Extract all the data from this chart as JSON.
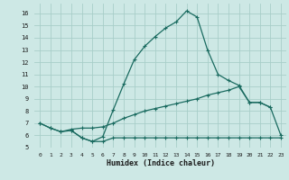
{
  "background_color": "#cde8e5",
  "grid_color": "#a8cec9",
  "line_color": "#1a6b60",
  "xlabel": "Humidex (Indice chaleur)",
  "xlim": [
    -0.5,
    23.5
  ],
  "ylim": [
    5,
    16.8
  ],
  "xticks": [
    0,
    1,
    2,
    3,
    4,
    5,
    6,
    7,
    8,
    9,
    10,
    11,
    12,
    13,
    14,
    15,
    16,
    17,
    18,
    19,
    20,
    21,
    22,
    23
  ],
  "yticks": [
    5,
    6,
    7,
    8,
    9,
    10,
    11,
    12,
    13,
    14,
    15,
    16
  ],
  "curve1_x": [
    0,
    1,
    2,
    3,
    4,
    5,
    6,
    7,
    8,
    9,
    10,
    11,
    12,
    13,
    14,
    15,
    16,
    17,
    18,
    19,
    20,
    21,
    22
  ],
  "curve1_y": [
    7.0,
    6.6,
    6.3,
    6.4,
    5.8,
    5.5,
    5.9,
    8.1,
    10.2,
    12.2,
    13.3,
    14.1,
    14.8,
    15.3,
    16.2,
    15.7,
    13.0,
    11.0,
    10.5,
    10.1,
    8.7,
    8.7,
    8.3
  ],
  "curve2_x": [
    0,
    1,
    2,
    3,
    4,
    5,
    6,
    7,
    8,
    9,
    10,
    11,
    12,
    13,
    14,
    15,
    16,
    17,
    18,
    19,
    20,
    21,
    22,
    23
  ],
  "curve2_y": [
    7.0,
    6.6,
    6.3,
    6.5,
    6.6,
    6.6,
    6.7,
    7.0,
    7.4,
    7.7,
    8.0,
    8.2,
    8.4,
    8.6,
    8.8,
    9.0,
    9.3,
    9.5,
    9.7,
    10.0,
    8.7,
    8.7,
    8.3,
    6.0
  ],
  "curve3_x": [
    3,
    4,
    5,
    6,
    7,
    8,
    9,
    10,
    11,
    12,
    13,
    14,
    15,
    16,
    17,
    18,
    19,
    20,
    21,
    22,
    23
  ],
  "curve3_y": [
    6.4,
    5.8,
    5.5,
    5.5,
    5.8,
    5.8,
    5.8,
    5.8,
    5.8,
    5.8,
    5.8,
    5.8,
    5.8,
    5.8,
    5.8,
    5.8,
    5.8,
    5.8,
    5.8,
    5.8,
    5.8
  ]
}
